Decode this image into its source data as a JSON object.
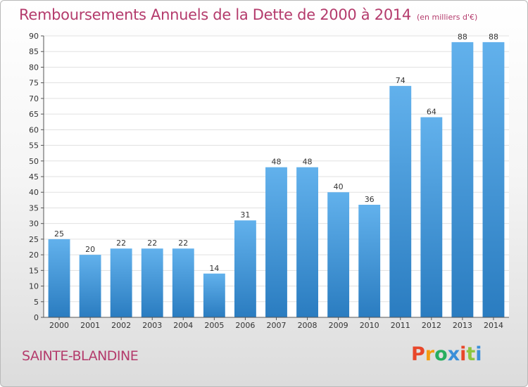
{
  "header": {
    "title": "Remboursements Annuels de la Dette de 2000 à 2014",
    "unit": "(en milliers d'€)"
  },
  "footer": {
    "city": "SAINTE-BLANDINE",
    "logo": "Proxiti",
    "logo_colors": [
      "#e8472a",
      "#f39c12",
      "#27ae60",
      "#3a8fd9",
      "#e8472a",
      "#8cc63f",
      "#3a8fd9"
    ]
  },
  "chart_data": {
    "type": "bar",
    "categories": [
      "2000",
      "2001",
      "2002",
      "2003",
      "2004",
      "2005",
      "2006",
      "2007",
      "2008",
      "2009",
      "2010",
      "2011",
      "2012",
      "2013",
      "2014"
    ],
    "values": [
      25,
      20,
      22,
      22,
      22,
      14,
      31,
      48,
      48,
      40,
      36,
      74,
      64,
      88,
      88
    ],
    "value_labels": [
      "25",
      "20",
      "22",
      "22",
      "22",
      "14",
      "31",
      "48",
      "48",
      "40",
      "36",
      "74",
      "64",
      "88",
      "88"
    ],
    "ylim": [
      0,
      90
    ],
    "yticks": [
      "0",
      "5",
      "10",
      "15",
      "20",
      "25",
      "30",
      "35",
      "40",
      "45",
      "50",
      "55",
      "60",
      "65",
      "70",
      "75",
      "80",
      "85",
      "90"
    ],
    "grid": true,
    "colors": {
      "bar_light": "#62b1ec",
      "bar_dark": "#2a7cc0",
      "grid": "#e1e1e1"
    }
  }
}
